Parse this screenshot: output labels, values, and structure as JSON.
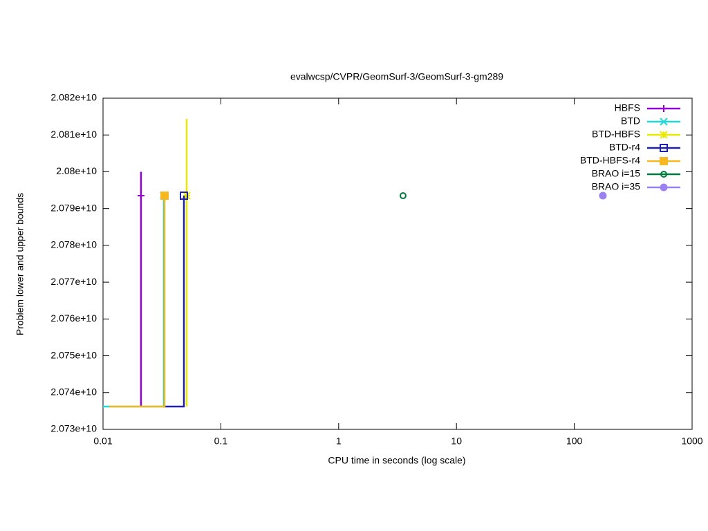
{
  "chart_data": {
    "type": "line",
    "title": "evalwcsp/CVPR/GeomSurf-3/GeomSurf-3-gm289",
    "x_label": "CPU time in seconds (log scale)",
    "y_label": "Problem lower and upper bounds",
    "x_log": true,
    "xlim": [
      0.01,
      1000
    ],
    "xticks": [
      0.01,
      0.1,
      1,
      10,
      100,
      1000
    ],
    "ylim": [
      20730000000,
      20820000000
    ],
    "yticks": [
      {
        "value": 20730000000,
        "label": "2.073e+10"
      },
      {
        "value": 20740000000,
        "label": "2.074e+10"
      },
      {
        "value": 20750000000,
        "label": "2.075e+10"
      },
      {
        "value": 20760000000,
        "label": "2.076e+10"
      },
      {
        "value": 20770000000,
        "label": "2.077e+10"
      },
      {
        "value": 20780000000,
        "label": "2.078e+10"
      },
      {
        "value": 20790000000,
        "label": "2.079e+10"
      },
      {
        "value": 20800000000,
        "label": "2.08e+10"
      },
      {
        "value": 20810000000,
        "label": "2.081e+10"
      },
      {
        "value": 20820000000,
        "label": "2.082e+10"
      }
    ],
    "legend": "top-right",
    "series": [
      {
        "name": "HBFS",
        "color": "#9400d3",
        "marker": "plus",
        "x": [
          0.021,
          0.021
        ],
        "values": [
          20736200000,
          20800000000
        ],
        "marker_x": [
          0.021
        ],
        "marker_values": [
          20793500000
        ]
      },
      {
        "name": "BTD",
        "color": "#20d8d8",
        "marker": "cross",
        "x": [
          0.01,
          0.0328,
          0.0328
        ],
        "values": [
          20736200000,
          20736200000,
          20793500000
        ],
        "marker_x": [
          0.0328
        ],
        "marker_values": [
          20793500000
        ]
      },
      {
        "name": "BTD-HBFS",
        "color": "#e8e800",
        "marker": "star",
        "x": [
          0.0513,
          0.0513
        ],
        "values": [
          20736200000,
          20814400000
        ],
        "marker_x": [
          0.0513
        ],
        "marker_values": [
          20793500000
        ]
      },
      {
        "name": "BTD-r4",
        "color": "#2020b0",
        "marker": "square",
        "x": [
          0.0328,
          0.0486,
          0.0486
        ],
        "values": [
          20736200000,
          20736200000,
          20793500000
        ],
        "marker_x": [
          0.0486
        ],
        "marker_values": [
          20793500000
        ]
      },
      {
        "name": "BTD-HBFS-r4",
        "color": "#f5b820",
        "marker": "filled-square",
        "x": [
          0.0113,
          0.0333,
          0.0333
        ],
        "values": [
          20736200000,
          20736200000,
          20793500000
        ],
        "marker_x": [
          0.0333
        ],
        "marker_values": [
          20793500000
        ]
      },
      {
        "name": "BRAO i=15",
        "color": "#007a3a",
        "marker": "circle",
        "x": [],
        "values": [],
        "marker_x": [
          3.52
        ],
        "marker_values": [
          20793500000
        ]
      },
      {
        "name": "BRAO i=35",
        "color": "#9a80f0",
        "marker": "filled-circle",
        "x": [],
        "values": [],
        "marker_x": [
          174.9
        ],
        "marker_values": [
          20793500000
        ]
      }
    ]
  }
}
